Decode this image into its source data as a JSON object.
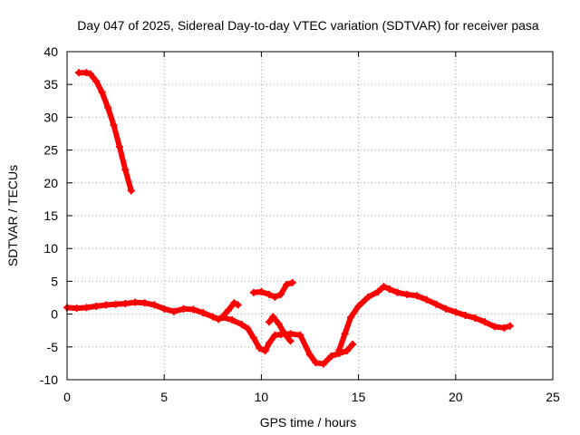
{
  "chart_data": {
    "type": "line",
    "title": "Day 047 of 2025, Sidereal Day-to-day VTEC variation (SDTVAR) for receiver pasa",
    "xlabel": "GPS time / hours",
    "ylabel": "SDTVAR / TECUs",
    "xlim": [
      0,
      25
    ],
    "ylim": [
      -10,
      40
    ],
    "xticks": [
      0,
      5,
      10,
      15,
      20,
      25
    ],
    "yticks": [
      -10,
      -5,
      0,
      5,
      10,
      15,
      20,
      25,
      30,
      35,
      40
    ],
    "grid": true,
    "legend": "none",
    "series_color": "#ff0000",
    "series": [
      {
        "name": "segment-early",
        "points": [
          [
            0.6,
            36.8
          ],
          [
            1.0,
            36.8
          ],
          [
            1.2,
            36.6
          ],
          [
            1.5,
            35.5
          ],
          [
            1.8,
            33.8
          ],
          [
            2.1,
            31.5
          ],
          [
            2.4,
            28.8
          ],
          [
            2.7,
            25.5
          ],
          [
            3.0,
            22.0
          ],
          [
            3.3,
            18.8
          ]
        ]
      },
      {
        "name": "segment-morning",
        "points": [
          [
            0.0,
            1.0
          ],
          [
            0.5,
            0.9
          ],
          [
            1.0,
            1.0
          ],
          [
            1.5,
            1.2
          ],
          [
            2.0,
            1.4
          ],
          [
            2.5,
            1.5
          ],
          [
            3.0,
            1.6
          ],
          [
            3.5,
            1.8
          ],
          [
            4.0,
            1.7
          ],
          [
            4.5,
            1.4
          ],
          [
            5.0,
            0.8
          ],
          [
            5.5,
            0.4
          ],
          [
            6.0,
            0.8
          ],
          [
            6.5,
            0.7
          ],
          [
            7.0,
            0.2
          ],
          [
            7.5,
            -0.4
          ],
          [
            7.8,
            -0.8
          ],
          [
            8.0,
            -0.4
          ],
          [
            8.3,
            0.6
          ],
          [
            8.6,
            1.7
          ],
          [
            8.8,
            1.4
          ]
        ]
      },
      {
        "name": "segment-midday",
        "points": [
          [
            8.0,
            -0.5
          ],
          [
            8.5,
            -0.9
          ],
          [
            9.0,
            -1.6
          ],
          [
            9.3,
            -2.2
          ],
          [
            9.6,
            -3.6
          ],
          [
            9.9,
            -5.2
          ],
          [
            10.2,
            -5.6
          ],
          [
            10.4,
            -4.4
          ],
          [
            10.7,
            -3.2
          ],
          [
            11.0,
            -3.1
          ],
          [
            11.5,
            -3.0
          ],
          [
            12.0,
            -3.2
          ],
          [
            12.5,
            -6.2
          ],
          [
            12.8,
            -7.4
          ],
          [
            13.2,
            -7.6
          ],
          [
            13.6,
            -6.4
          ],
          [
            14.0,
            -6.0
          ],
          [
            14.4,
            -5.6
          ],
          [
            14.7,
            -4.6
          ]
        ]
      },
      {
        "name": "segment-bump",
        "points": [
          [
            9.6,
            3.3
          ],
          [
            10.0,
            3.4
          ],
          [
            10.4,
            3.0
          ],
          [
            10.7,
            2.6
          ],
          [
            11.0,
            3.0
          ],
          [
            11.3,
            4.5
          ],
          [
            11.6,
            4.8
          ]
        ]
      },
      {
        "name": "segment-dip",
        "points": [
          [
            10.4,
            -1.2
          ],
          [
            10.6,
            -0.4
          ],
          [
            10.9,
            -1.5
          ],
          [
            11.2,
            -3.0
          ],
          [
            11.5,
            -4.1
          ]
        ]
      },
      {
        "name": "segment-afternoon",
        "points": [
          [
            14.0,
            -5.5
          ],
          [
            14.3,
            -3.0
          ],
          [
            14.6,
            -0.5
          ],
          [
            15.0,
            1.2
          ],
          [
            15.5,
            2.6
          ],
          [
            16.0,
            3.4
          ],
          [
            16.3,
            4.2
          ],
          [
            16.6,
            3.8
          ],
          [
            17.0,
            3.3
          ],
          [
            17.5,
            3.0
          ],
          [
            18.0,
            2.8
          ],
          [
            18.5,
            2.2
          ],
          [
            19.0,
            1.5
          ],
          [
            19.5,
            0.8
          ],
          [
            20.0,
            0.3
          ],
          [
            20.5,
            -0.2
          ],
          [
            21.0,
            -0.6
          ],
          [
            21.5,
            -1.2
          ],
          [
            22.0,
            -1.9
          ],
          [
            22.5,
            -2.1
          ],
          [
            22.8,
            -1.8
          ]
        ]
      }
    ]
  }
}
